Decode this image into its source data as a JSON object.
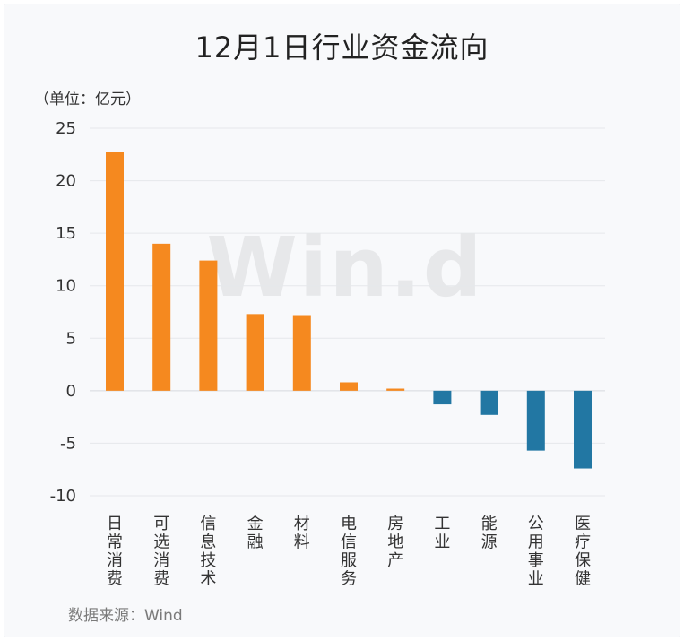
{
  "chart_data": {
    "type": "bar",
    "title": "12月1日行业资金流向",
    "unit_label": "（单位：亿元）",
    "categories": [
      "日常消费",
      "可选消费",
      "信息技术",
      "金融",
      "材料",
      "电信服务",
      "房地产",
      "工业",
      "能源",
      "公用事业",
      "医疗保健"
    ],
    "values": [
      22.7,
      14.0,
      12.4,
      7.3,
      7.2,
      0.8,
      0.2,
      -1.3,
      -2.3,
      -5.7,
      -7.4
    ],
    "ylim": [
      -10,
      25
    ],
    "yticks": [
      25,
      20,
      15,
      10,
      5,
      0,
      -5,
      -10
    ],
    "grid": true,
    "legend": "none",
    "colors": {
      "positive": "#f5891f",
      "negative": "#2277a3"
    }
  },
  "watermark": "Win.d",
  "source": "数据来源：Wind"
}
